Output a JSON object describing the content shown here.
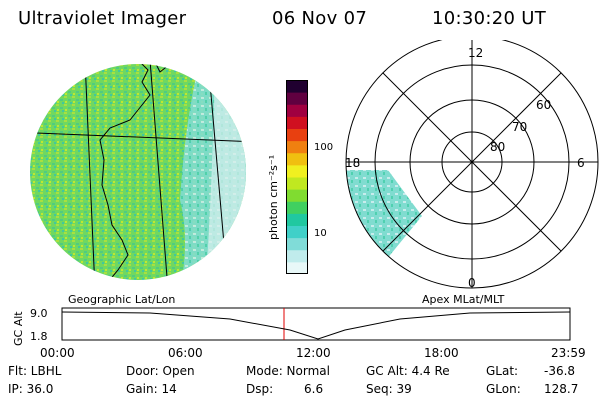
{
  "header": {
    "instrument": "Ultraviolet Imager",
    "date": "06 Nov 07",
    "time": "10:30:20 UT"
  },
  "colorbar": {
    "label": "photon cm⁻²s⁻¹",
    "ticks": [
      "100",
      "10"
    ],
    "colors": [
      "#e8f8f8",
      "#c0ecec",
      "#80dcd8",
      "#40d0c8",
      "#20c8a0",
      "#40d060",
      "#80dc30",
      "#c0e820",
      "#f0f020",
      "#f0c010",
      "#f08010",
      "#e84010",
      "#d01020",
      "#a00040",
      "#600040",
      "#200030"
    ]
  },
  "polar_plot": {
    "mlt_labels": {
      "top": "12",
      "bottom": "0",
      "left": "18",
      "right": "6"
    },
    "mlat_labels": [
      "60",
      "70",
      "80"
    ]
  },
  "map_labels": {
    "left": "Geographic Lat/Lon",
    "right": "Apex MLat/MLT"
  },
  "altitude_plot": {
    "ylabel": "GC Alt",
    "yticks": [
      "9.0",
      "1.8"
    ],
    "xticks": [
      "00:00",
      "06:00",
      "12:00",
      "18:00",
      "23:59"
    ]
  },
  "footer": {
    "flt": "Flt: LBHL",
    "ip": "IP: 36.0",
    "door": "Door: Open",
    "gain": "Gain: 14",
    "mode": "Mode: Normal",
    "dsp_label": "Dsp:",
    "dsp_value": "6.6",
    "gcalt": "GC Alt: 4.4 Re",
    "seq": "Seq: 39",
    "glat_label": "GLat:",
    "glat_value": "-36.8",
    "glon_label": "GLon:",
    "glon_value": "128.7"
  }
}
